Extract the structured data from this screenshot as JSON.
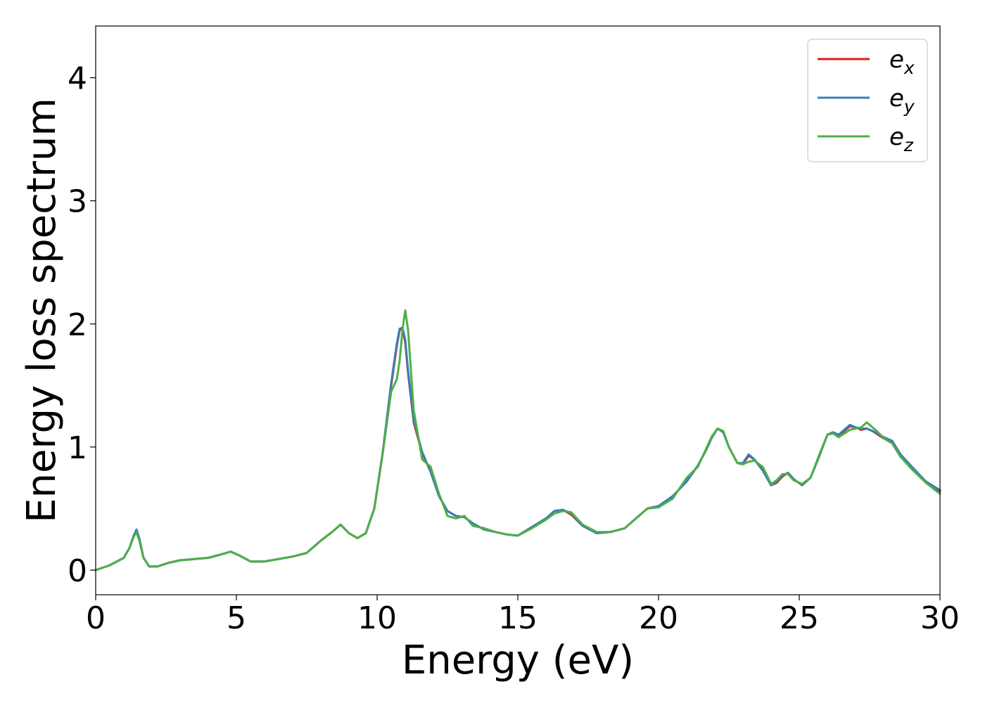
{
  "chart_data": {
    "type": "line",
    "title": "",
    "xlabel": "Energy (eV)",
    "ylabel": "Energy loss spectrum",
    "xlim": [
      0,
      30
    ],
    "ylim": [
      -0.2,
      4.42
    ],
    "xticks": [
      0,
      5,
      10,
      15,
      20,
      25,
      30
    ],
    "yticks": [
      0,
      1,
      2,
      3,
      4
    ],
    "grid": false,
    "legend_position": "top-right",
    "colors": {
      "e_x": "#e41a1c",
      "e_y": "#377eb8",
      "e_z": "#4daf4a"
    },
    "series": [
      {
        "name": "e_x",
        "legend_base": "e",
        "legend_sub": "x",
        "color": "#e41a1c",
        "x": [
          0,
          0.5,
          1.0,
          1.2,
          1.35,
          1.45,
          1.55,
          1.7,
          1.9,
          2.2,
          2.6,
          3.0,
          3.5,
          4.0,
          4.5,
          4.8,
          5.1,
          5.5,
          6.0,
          6.5,
          7.0,
          7.5,
          8.0,
          8.4,
          8.7,
          9.0,
          9.3,
          9.6,
          9.9,
          10.2,
          10.5,
          10.7,
          10.8,
          10.9,
          11.0,
          11.1,
          11.3,
          11.6,
          11.9,
          12.2,
          12.5,
          12.8,
          13.1,
          13.4,
          13.8,
          14.2,
          14.6,
          15.0,
          15.5,
          16.0,
          16.3,
          16.6,
          16.9,
          17.3,
          17.8,
          18.3,
          18.8,
          19.2,
          19.6,
          20.0,
          20.5,
          21.0,
          21.4,
          21.7,
          21.9,
          22.1,
          22.3,
          22.5,
          22.8,
          23.0,
          23.2,
          23.4,
          23.7,
          24.0,
          24.2,
          24.4,
          24.6,
          24.8,
          25.1,
          25.4,
          25.7,
          26.0,
          26.2,
          26.4,
          26.6,
          26.8,
          27.0,
          27.2,
          27.4,
          27.6,
          27.8,
          28.0,
          28.3,
          28.6,
          29.0,
          29.5,
          30.0
        ],
        "y": [
          0,
          0.04,
          0.1,
          0.18,
          0.28,
          0.32,
          0.25,
          0.1,
          0.03,
          0.03,
          0.06,
          0.08,
          0.09,
          0.1,
          0.13,
          0.15,
          0.12,
          0.07,
          0.07,
          0.09,
          0.11,
          0.14,
          0.24,
          0.31,
          0.37,
          0.3,
          0.26,
          0.3,
          0.5,
          0.95,
          1.5,
          1.82,
          1.95,
          1.96,
          1.85,
          1.6,
          1.2,
          0.95,
          0.8,
          0.6,
          0.48,
          0.44,
          0.43,
          0.38,
          0.33,
          0.31,
          0.29,
          0.28,
          0.35,
          0.42,
          0.48,
          0.49,
          0.45,
          0.36,
          0.3,
          0.31,
          0.34,
          0.42,
          0.5,
          0.52,
          0.6,
          0.72,
          0.85,
          0.98,
          1.08,
          1.15,
          1.12,
          1.0,
          0.87,
          0.86,
          0.93,
          0.9,
          0.81,
          0.69,
          0.71,
          0.76,
          0.79,
          0.74,
          0.69,
          0.75,
          0.92,
          1.1,
          1.12,
          1.09,
          1.13,
          1.17,
          1.16,
          1.14,
          1.15,
          1.13,
          1.1,
          1.07,
          1.05,
          0.93,
          0.83,
          0.72,
          0.64
        ]
      },
      {
        "name": "e_y",
        "legend_base": "e",
        "legend_sub": "y",
        "color": "#377eb8",
        "x": [
          0,
          0.5,
          1.0,
          1.2,
          1.35,
          1.45,
          1.55,
          1.7,
          1.9,
          2.2,
          2.6,
          3.0,
          3.5,
          4.0,
          4.5,
          4.8,
          5.1,
          5.5,
          6.0,
          6.5,
          7.0,
          7.5,
          8.0,
          8.4,
          8.7,
          9.0,
          9.3,
          9.6,
          9.9,
          10.2,
          10.5,
          10.7,
          10.8,
          10.9,
          11.0,
          11.1,
          11.3,
          11.6,
          11.9,
          12.2,
          12.5,
          12.8,
          13.1,
          13.4,
          13.8,
          14.2,
          14.6,
          15.0,
          15.5,
          16.0,
          16.3,
          16.6,
          16.9,
          17.3,
          17.8,
          18.3,
          18.8,
          19.2,
          19.6,
          20.0,
          20.5,
          21.0,
          21.4,
          21.7,
          21.9,
          22.1,
          22.3,
          22.5,
          22.8,
          23.0,
          23.2,
          23.4,
          23.7,
          24.0,
          24.2,
          24.4,
          24.6,
          24.8,
          25.1,
          25.4,
          25.7,
          26.0,
          26.2,
          26.4,
          26.6,
          26.8,
          27.0,
          27.2,
          27.4,
          27.6,
          27.8,
          28.0,
          28.3,
          28.6,
          29.0,
          29.5,
          30.0
        ],
        "y": [
          0,
          0.04,
          0.1,
          0.18,
          0.28,
          0.33,
          0.26,
          0.1,
          0.03,
          0.03,
          0.06,
          0.08,
          0.09,
          0.1,
          0.13,
          0.15,
          0.12,
          0.07,
          0.07,
          0.09,
          0.11,
          0.14,
          0.24,
          0.31,
          0.37,
          0.3,
          0.26,
          0.3,
          0.5,
          0.96,
          1.52,
          1.84,
          1.96,
          1.97,
          1.87,
          1.62,
          1.22,
          0.96,
          0.8,
          0.6,
          0.48,
          0.44,
          0.43,
          0.38,
          0.33,
          0.31,
          0.29,
          0.28,
          0.35,
          0.42,
          0.48,
          0.49,
          0.46,
          0.36,
          0.3,
          0.31,
          0.34,
          0.42,
          0.5,
          0.52,
          0.6,
          0.72,
          0.85,
          0.98,
          1.08,
          1.15,
          1.12,
          1.0,
          0.87,
          0.87,
          0.94,
          0.9,
          0.81,
          0.69,
          0.72,
          0.77,
          0.79,
          0.74,
          0.69,
          0.75,
          0.92,
          1.1,
          1.12,
          1.1,
          1.14,
          1.18,
          1.16,
          1.15,
          1.15,
          1.13,
          1.11,
          1.08,
          1.05,
          0.94,
          0.84,
          0.72,
          0.65
        ]
      },
      {
        "name": "e_z",
        "legend_base": "e",
        "legend_sub": "z",
        "color": "#4daf4a",
        "x": [
          0,
          0.5,
          1.0,
          1.2,
          1.35,
          1.45,
          1.55,
          1.7,
          1.9,
          2.2,
          2.6,
          3.0,
          3.5,
          4.0,
          4.5,
          4.8,
          5.1,
          5.5,
          6.0,
          6.5,
          7.0,
          7.5,
          8.0,
          8.4,
          8.7,
          9.0,
          9.3,
          9.6,
          9.9,
          10.2,
          10.5,
          10.7,
          10.8,
          10.9,
          11.0,
          11.1,
          11.3,
          11.6,
          11.9,
          12.2,
          12.5,
          12.8,
          13.1,
          13.4,
          13.8,
          14.2,
          14.6,
          15.0,
          15.5,
          16.0,
          16.3,
          16.6,
          16.9,
          17.3,
          17.8,
          18.3,
          18.8,
          19.2,
          19.6,
          20.0,
          20.5,
          21.0,
          21.4,
          21.7,
          21.9,
          22.1,
          22.3,
          22.5,
          22.8,
          23.0,
          23.2,
          23.4,
          23.7,
          24.0,
          24.2,
          24.4,
          24.6,
          24.8,
          25.1,
          25.4,
          25.7,
          26.0,
          26.2,
          26.4,
          26.6,
          26.8,
          27.0,
          27.2,
          27.4,
          27.6,
          27.8,
          28.0,
          28.3,
          28.6,
          29.0,
          29.5,
          30.0
        ],
        "y": [
          0,
          0.04,
          0.1,
          0.18,
          0.27,
          0.31,
          0.24,
          0.1,
          0.03,
          0.03,
          0.06,
          0.08,
          0.09,
          0.1,
          0.13,
          0.15,
          0.12,
          0.07,
          0.07,
          0.09,
          0.11,
          0.14,
          0.24,
          0.31,
          0.37,
          0.3,
          0.26,
          0.3,
          0.5,
          0.95,
          1.45,
          1.55,
          1.7,
          1.95,
          2.11,
          1.95,
          1.3,
          0.9,
          0.84,
          0.62,
          0.44,
          0.42,
          0.44,
          0.36,
          0.34,
          0.31,
          0.29,
          0.28,
          0.34,
          0.41,
          0.46,
          0.48,
          0.47,
          0.37,
          0.31,
          0.31,
          0.34,
          0.42,
          0.5,
          0.51,
          0.58,
          0.75,
          0.84,
          0.99,
          1.09,
          1.15,
          1.13,
          1.0,
          0.87,
          0.86,
          0.88,
          0.89,
          0.84,
          0.7,
          0.73,
          0.78,
          0.78,
          0.73,
          0.7,
          0.75,
          0.93,
          1.1,
          1.11,
          1.08,
          1.11,
          1.14,
          1.15,
          1.16,
          1.2,
          1.16,
          1.12,
          1.07,
          1.03,
          0.92,
          0.82,
          0.71,
          0.62
        ]
      }
    ]
  }
}
